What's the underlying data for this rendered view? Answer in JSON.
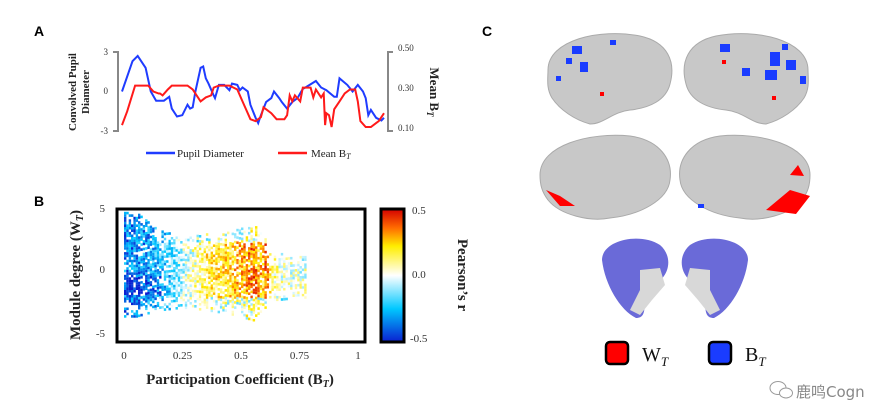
{
  "panels": {
    "a": "A",
    "b": "B",
    "c": "C"
  },
  "chart_data": [
    {
      "type": "line",
      "panel": "A",
      "ylabel_left": "Convolved Pupil Diameter",
      "ylabel_left_lines": [
        "Convolved Pupil",
        "Diameter"
      ],
      "ylabel_right": {
        "text": "Mean B",
        "sub": "T"
      },
      "ylim_left": [
        -3,
        3
      ],
      "yticks_left": [
        "3",
        "0",
        "-3"
      ],
      "ylim_right": [
        0.1,
        0.5
      ],
      "yticks_right": [
        "0.50",
        "0.30",
        "0.10"
      ],
      "legend_position": "bottom",
      "series": [
        {
          "name": "Pupil Diameter",
          "color": "#1f3cff",
          "axis": "left",
          "x": [
            0,
            4,
            6,
            9,
            11,
            13,
            16,
            18,
            19,
            21,
            23,
            25,
            26,
            27,
            28,
            30,
            31,
            32,
            33,
            35,
            35.5,
            37,
            39,
            41,
            42,
            44,
            45,
            46,
            48,
            49,
            51,
            52,
            53,
            55,
            57,
            58,
            60,
            61,
            63,
            65,
            67,
            69,
            70,
            74,
            76,
            78,
            81,
            82,
            83,
            86,
            88,
            90,
            92,
            93,
            94,
            95,
            97,
            99,
            100
          ],
          "y": [
            0,
            2.3,
            2.7,
            1.8,
            0,
            -0.7,
            -0.7,
            -0.4,
            -1.3,
            -1.9,
            -1.8,
            -1.0,
            -1.3,
            -1.2,
            0,
            1.8,
            1.9,
            1.0,
            0.6,
            -0.3,
            -0.5,
            0.5,
            0.5,
            0.1,
            0.6,
            0.5,
            0.1,
            0.3,
            0,
            -1,
            -2,
            -2.4,
            -1.8,
            -0.8,
            -0.5,
            0,
            -0.5,
            -0.8,
            -1.3,
            -0.8,
            -0.5,
            0.2,
            0.3,
            0.8,
            0.3,
            0.1,
            -0.4,
            -0.4,
            1,
            0.5,
            0,
            0.5,
            0,
            -0.5,
            -1.8,
            -1.4,
            -2,
            -2.2,
            -2
          ]
        },
        {
          "name": "Mean B",
          "name_sub": "T",
          "color": "#ff1a1a",
          "axis": "right",
          "x": [
            0,
            2,
            5,
            10,
            12,
            14,
            14.5,
            15.5,
            17.5,
            19,
            25,
            27,
            30,
            32,
            34,
            35,
            37,
            41,
            44,
            46,
            49,
            51,
            53,
            54,
            57,
            59,
            62,
            63,
            64,
            65,
            66,
            68,
            69,
            72,
            73,
            74,
            76,
            77,
            77.5,
            78,
            79,
            80,
            81,
            83,
            85,
            87,
            89,
            90,
            91,
            93,
            95,
            97,
            98,
            100
          ],
          "y": [
            0.13,
            0.2,
            0.33,
            0.33,
            0.3,
            0.29,
            0.29,
            0.28,
            0.31,
            0.33,
            0.33,
            0.31,
            0.25,
            0.27,
            0.28,
            0.32,
            0.33,
            0.33,
            0.31,
            0.25,
            0.16,
            0.15,
            0.17,
            0.22,
            0.19,
            0.16,
            0.16,
            0.18,
            0.28,
            0.25,
            0.28,
            0.25,
            0.32,
            0.32,
            0.27,
            0.31,
            0.27,
            0.29,
            0.13,
            0.19,
            0.18,
            0.12,
            0.21,
            0.25,
            0.29,
            0.31,
            0.31,
            0.25,
            0.15,
            0.12,
            0.12,
            0.14,
            0.15,
            0.19
          ]
        }
      ]
    },
    {
      "type": "heatmap",
      "panel": "B",
      "xlabel": {
        "text": "Participation Coefficient (B",
        "sub": "T",
        "close": ")"
      },
      "ylabel": {
        "text": "Module degree (W",
        "sub": "T",
        "close": ")"
      },
      "xlim": [
        0,
        1
      ],
      "xticks": [
        "0",
        "0.25",
        "0.5",
        "0.75",
        "1"
      ],
      "ylim": [
        -5,
        5
      ],
      "yticks": [
        "5",
        "0",
        "-5"
      ],
      "colorbar": {
        "label": "Pearson’s r",
        "range": [
          -0.5,
          0.5
        ],
        "ticks": [
          "0.5",
          "0.0",
          "-0.5"
        ],
        "colors": [
          "#0a1fd0",
          "#00c8ff",
          "#ffffff",
          "#ffee00",
          "#ff6a00",
          "#d40000"
        ]
      },
      "x_bins": [
        0.05,
        0.15,
        0.25,
        0.35,
        0.45,
        0.55,
        0.65,
        0.75
      ],
      "mean_r_by_bin": [
        -0.35,
        -0.25,
        -0.05,
        0.15,
        0.2,
        0.35,
        0.05,
        0.0
      ],
      "y_extent_by_bin": [
        [
          -3.7,
          4.6
        ],
        [
          -3.2,
          3.2
        ],
        [
          -3.0,
          2.6
        ],
        [
          -3.2,
          2.8
        ],
        [
          -3.5,
          3.0
        ],
        [
          -4.0,
          3.6
        ],
        [
          -2.4,
          1.4
        ],
        [
          -2.2,
          1.0
        ]
      ]
    }
  ],
  "panel_c": {
    "legend": [
      {
        "label": "W",
        "sub": "T",
        "color": "#ff0000"
      },
      {
        "label": "B",
        "sub": "T",
        "color": "#1a3cff"
      }
    ],
    "brain_color": "#c8c8c8",
    "subcortex_color": "#6a6ad8"
  },
  "watermark": "鹿鸣Cogn"
}
